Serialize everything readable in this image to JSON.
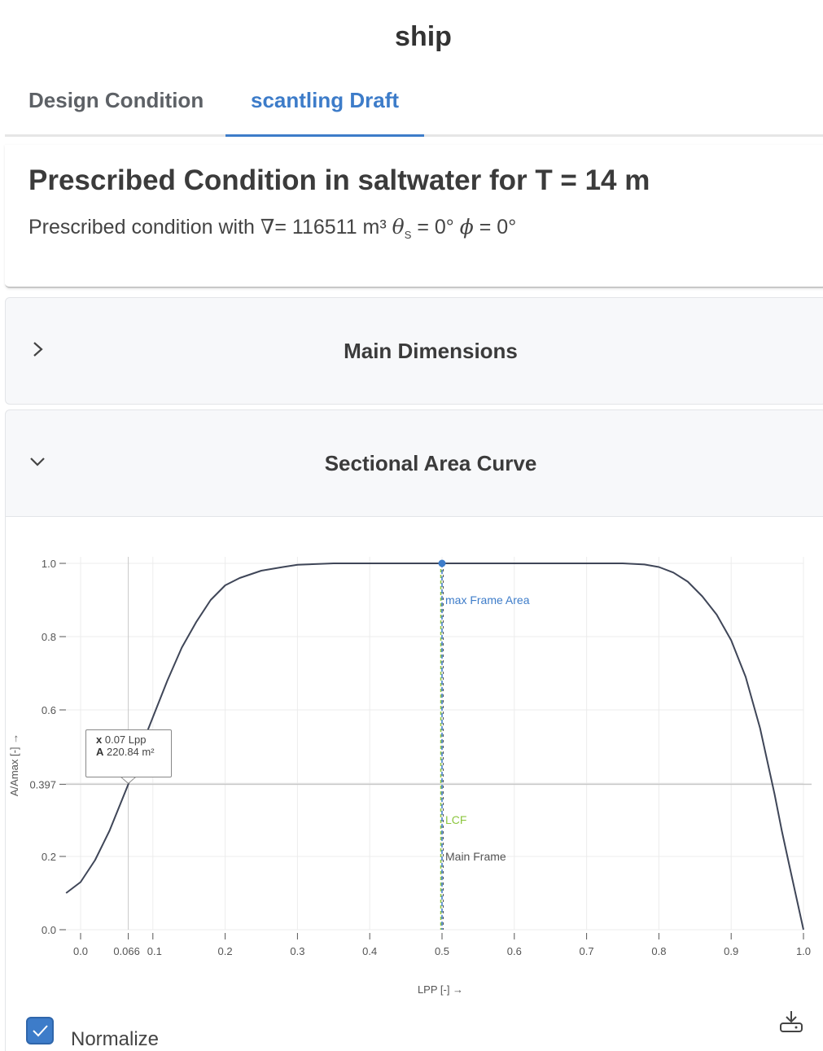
{
  "app": {
    "title": "ship"
  },
  "tabs": [
    {
      "label": "Design Condition",
      "active": false
    },
    {
      "label": "scantling Draft",
      "active": true
    }
  ],
  "condition": {
    "title": "Prescribed Condition in saltwater for T = 14 m",
    "prefix": "Prescribed condition with",
    "volume_symbol": "∇",
    "volume_text": "= 116511 m³",
    "theta_symbol": "θ",
    "theta_sub": "S",
    "theta_text": "= 0°",
    "phi_symbol": "ϕ",
    "phi_text": "= 0°"
  },
  "panels": {
    "main_dimensions": {
      "title": "Main Dimensions",
      "expanded": false,
      "icon": "chevron-right-icon"
    },
    "sectional_area": {
      "title": "Sectional Area Curve",
      "expanded": true,
      "icon": "chevron-down-icon"
    }
  },
  "chart_data": {
    "type": "line",
    "xlabel": "LPP [-] →",
    "ylabel": "A/Amax [-] →",
    "xlim": [
      0,
      1
    ],
    "ylim": [
      0,
      1
    ],
    "xticks": [
      "0.0",
      "0.066",
      "0.1",
      "0.2",
      "0.3",
      "0.4",
      "0.5",
      "0.6",
      "0.7",
      "0.8",
      "0.9",
      "1.0"
    ],
    "xtick_values": [
      0,
      0.066,
      0.1,
      0.2,
      0.3,
      0.4,
      0.5,
      0.6,
      0.7,
      0.8,
      0.9,
      1.0
    ],
    "yticks": [
      "0.0",
      "0.2",
      "0.397",
      "0.6",
      "0.8",
      "1.0"
    ],
    "ytick_values": [
      0,
      0.2,
      0.397,
      0.6,
      0.8,
      1.0
    ],
    "grid": true,
    "series": [
      {
        "color": "#3f4658",
        "x": [
          -0.02,
          0.0,
          0.02,
          0.04,
          0.066,
          0.08,
          0.1,
          0.12,
          0.14,
          0.16,
          0.18,
          0.2,
          0.22,
          0.25,
          0.28,
          0.3,
          0.35,
          0.5,
          0.75,
          0.78,
          0.8,
          0.82,
          0.84,
          0.86,
          0.88,
          0.9,
          0.92,
          0.94,
          0.96,
          0.97,
          0.98,
          0.99,
          1.0
        ],
        "y": [
          0.1,
          0.13,
          0.19,
          0.27,
          0.397,
          0.48,
          0.58,
          0.68,
          0.77,
          0.84,
          0.9,
          0.94,
          0.96,
          0.98,
          0.99,
          0.996,
          1.0,
          1.0,
          1.0,
          0.997,
          0.99,
          0.975,
          0.95,
          0.91,
          0.86,
          0.79,
          0.69,
          0.55,
          0.37,
          0.27,
          0.18,
          0.09,
          0.0
        ]
      }
    ],
    "vertical_markers": [
      {
        "x": 0.5,
        "label": "max Frame Area",
        "color": "#3d7cc9",
        "label_y": 0.9
      },
      {
        "x": 0.5,
        "label": "LCF",
        "color": "#8cc63f",
        "label_y": 0.3
      },
      {
        "x": 0.5,
        "label": "Main Frame",
        "color": "#555555",
        "label_y": 0.2
      }
    ],
    "max_point": {
      "x": 0.5,
      "y": 1.0,
      "color": "#3d7cc9"
    },
    "crosshair": {
      "x": 0.066,
      "y": 0.397
    },
    "tooltip": {
      "x_key": "x",
      "x_value": "0.07 Lpp",
      "a_key": "A",
      "a_value": "220.84 m²"
    }
  },
  "controls": {
    "normalize_label": "Normalize",
    "normalize_checked": true,
    "download_icon": "download-icon"
  }
}
